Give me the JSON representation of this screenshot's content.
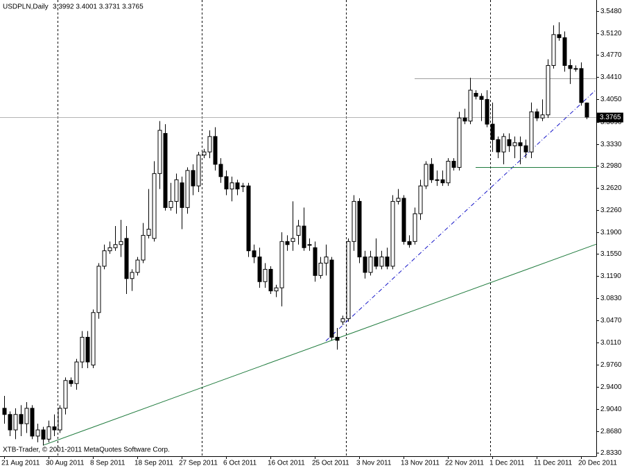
{
  "chart_data": {
    "type": "candlestick",
    "title": "USDPLN,Daily",
    "ohlc_header": "3.3992 3.4001 3.3731 3.3765",
    "watermark": "XTB-Trader, © 2001-2011 MetaQuotes Software Corp.",
    "categories": [
      "21 Aug 2011",
      null,
      null,
      null,
      null,
      null,
      null,
      null,
      "30 Aug 2011",
      null,
      null,
      null,
      null,
      null,
      null,
      null,
      "8 Sep 2011",
      null,
      null,
      null,
      null,
      null,
      null,
      null,
      "18 Sep 2011",
      null,
      null,
      null,
      null,
      null,
      null,
      null,
      "27 Sep 2011",
      null,
      null,
      null,
      null,
      null,
      null,
      null,
      "6 Oct 2011",
      null,
      null,
      null,
      null,
      null,
      null,
      null,
      "16 Oct 2011",
      null,
      null,
      null,
      null,
      null,
      null,
      null,
      "25 Oct 2011",
      null,
      null,
      null,
      null,
      null,
      null,
      null,
      "3 Nov 2011",
      null,
      null,
      null,
      null,
      null,
      null,
      null,
      "13 Nov 2011",
      null,
      null,
      null,
      null,
      null,
      null,
      null,
      "22 Nov 2011",
      null,
      null,
      null,
      null,
      null,
      null,
      null,
      "1 Dec 2011",
      null,
      null,
      null,
      null,
      null,
      null,
      null,
      "11 Dec 2011",
      null,
      null,
      null,
      null,
      null,
      null,
      null,
      "20 Dec 2011",
      null
    ],
    "open": [
      2.905,
      2.895,
      2.87,
      2.895,
      2.88,
      2.905,
      2.86,
      2.87,
      2.855,
      2.875,
      2.87,
      2.905,
      2.95,
      2.945,
      2.98,
      3.02,
      2.975,
      3.06,
      3.135,
      3.16,
      3.165,
      3.17,
      3.18,
      3.115,
      3.125,
      3.145,
      3.185,
      3.18,
      3.285,
      3.35,
      3.23,
      3.24,
      3.27,
      3.23,
      3.29,
      3.265,
      3.315,
      3.32,
      3.345,
      3.3,
      3.28,
      3.26,
      3.27,
      3.265,
      3.265,
      3.16,
      3.15,
      3.11,
      3.13,
      3.095,
      3.1,
      3.175,
      3.175,
      3.185,
      3.2,
      3.17,
      3.165,
      3.12,
      3.14,
      3.145,
      3.02,
      3.045,
      3.05,
      3.175,
      3.24,
      3.15,
      3.125,
      3.15,
      3.135,
      3.15,
      3.135,
      3.24,
      3.245,
      3.175,
      3.175,
      3.22,
      3.265,
      3.3,
      3.275,
      3.275,
      3.27,
      3.305,
      3.295,
      3.375,
      3.37,
      3.415,
      3.41,
      3.405,
      3.365,
      3.34,
      3.32,
      3.34,
      3.33,
      3.335,
      3.33,
      3.32,
      3.385,
      3.375,
      3.38,
      3.46,
      3.51,
      3.505,
      3.46,
      3.455,
      3.455,
      3.3992
    ],
    "high": [
      2.925,
      2.9,
      2.905,
      2.91,
      2.915,
      2.91,
      2.88,
      2.875,
      2.885,
      2.895,
      2.91,
      2.955,
      2.955,
      2.985,
      3.03,
      3.03,
      3.065,
      3.14,
      3.17,
      3.175,
      3.2,
      3.21,
      3.2,
      3.13,
      3.15,
      3.205,
      3.26,
      3.305,
      3.37,
      3.365,
      3.27,
      3.285,
      3.28,
      3.295,
      3.3,
      3.32,
      3.325,
      3.355,
      3.36,
      3.31,
      3.29,
      3.28,
      3.275,
      3.27,
      3.27,
      3.17,
      3.165,
      3.14,
      3.135,
      3.105,
      3.19,
      3.185,
      3.24,
      3.21,
      3.23,
      3.18,
      3.175,
      3.15,
      3.17,
      3.15,
      3.035,
      3.055,
      3.18,
      3.25,
      3.245,
      3.16,
      3.16,
      3.18,
      3.16,
      3.165,
      3.25,
      3.26,
      3.25,
      3.185,
      3.23,
      3.275,
      3.305,
      3.31,
      3.29,
      3.29,
      3.31,
      3.31,
      3.385,
      3.39,
      3.44,
      3.42,
      3.415,
      3.42,
      3.4,
      3.345,
      3.35,
      3.35,
      3.345,
      3.345,
      3.34,
      3.4,
      3.39,
      3.405,
      3.47,
      3.525,
      3.53,
      3.515,
      3.47,
      3.46,
      3.465,
      3.4001
    ],
    "low": [
      2.88,
      2.86,
      2.855,
      2.86,
      2.865,
      2.855,
      2.85,
      2.845,
      2.85,
      2.86,
      2.865,
      2.895,
      2.94,
      2.935,
      2.97,
      2.97,
      2.97,
      3.05,
      3.13,
      3.155,
      3.16,
      3.15,
      3.09,
      3.095,
      3.12,
      3.14,
      3.18,
      3.175,
      3.26,
      3.225,
      3.225,
      3.22,
      3.195,
      3.22,
      3.25,
      3.255,
      3.31,
      3.31,
      3.29,
      3.27,
      3.25,
      3.24,
      3.25,
      3.255,
      3.15,
      3.14,
      3.1,
      3.1,
      3.09,
      3.085,
      3.07,
      3.16,
      3.16,
      3.17,
      3.16,
      3.16,
      3.11,
      3.115,
      3.12,
      3.015,
      3.0,
      3.04,
      3.045,
      3.16,
      3.14,
      3.115,
      3.12,
      3.13,
      3.13,
      3.13,
      3.13,
      3.235,
      3.17,
      3.165,
      3.17,
      3.21,
      3.26,
      3.27,
      3.265,
      3.265,
      3.265,
      3.29,
      3.29,
      3.365,
      3.365,
      3.405,
      3.37,
      3.36,
      3.32,
      3.31,
      3.3,
      3.32,
      3.31,
      3.3,
      3.31,
      3.31,
      3.37,
      3.37,
      3.375,
      3.455,
      3.5,
      3.45,
      3.43,
      3.45,
      3.395,
      3.3731
    ],
    "close": [
      2.895,
      2.87,
      2.895,
      2.88,
      2.905,
      2.86,
      2.87,
      2.855,
      2.875,
      2.87,
      2.905,
      2.95,
      2.945,
      2.98,
      3.02,
      2.98,
      3.06,
      3.135,
      3.16,
      3.165,
      3.17,
      3.175,
      3.115,
      3.125,
      3.145,
      3.185,
      3.195,
      3.285,
      3.355,
      3.23,
      3.24,
      3.275,
      3.23,
      3.29,
      3.265,
      3.315,
      3.32,
      3.345,
      3.3,
      3.28,
      3.26,
      3.27,
      3.26,
      3.265,
      3.16,
      3.15,
      3.11,
      3.13,
      3.095,
      3.1,
      3.175,
      3.17,
      3.18,
      3.2,
      3.165,
      3.17,
      3.12,
      3.14,
      3.15,
      3.02,
      3.015,
      3.05,
      3.175,
      3.24,
      3.15,
      3.125,
      3.15,
      3.135,
      3.15,
      3.135,
      3.24,
      3.245,
      3.175,
      3.17,
      3.22,
      3.265,
      3.3,
      3.275,
      3.275,
      3.27,
      3.305,
      3.295,
      3.375,
      3.37,
      3.42,
      3.41,
      3.405,
      3.365,
      3.34,
      3.32,
      3.345,
      3.33,
      3.335,
      3.33,
      3.32,
      3.385,
      3.375,
      3.38,
      3.46,
      3.51,
      3.505,
      3.46,
      3.455,
      3.455,
      3.4,
      3.3765
    ],
    "ylim": [
      2.8274,
      3.566
    ],
    "yticks": [
      {
        "value": 3.548,
        "label": "3.5480"
      },
      {
        "value": 3.512,
        "label": "3.5120"
      },
      {
        "value": 3.477,
        "label": "3.4770"
      },
      {
        "value": 3.441,
        "label": "3.4410"
      },
      {
        "value": 3.405,
        "label": "3.4050"
      },
      {
        "value": 3.369,
        "label": "3.3690"
      },
      {
        "value": 3.333,
        "label": "3.3330"
      },
      {
        "value": 3.298,
        "label": "3.2980"
      },
      {
        "value": 3.262,
        "label": "3.2620"
      },
      {
        "value": 3.226,
        "label": "3.2260"
      },
      {
        "value": 3.19,
        "label": "3.1900"
      },
      {
        "value": 3.155,
        "label": "3.1550"
      },
      {
        "value": 3.119,
        "label": "3.1190"
      },
      {
        "value": 3.083,
        "label": "3.0830"
      },
      {
        "value": 3.047,
        "label": "3.0470"
      },
      {
        "value": 3.011,
        "label": "3.0110"
      },
      {
        "value": 2.976,
        "label": "2.9760"
      },
      {
        "value": 2.94,
        "label": "2.9400"
      },
      {
        "value": 2.904,
        "label": "2.9040"
      },
      {
        "value": 2.868,
        "label": "2.8680"
      },
      {
        "value": 2.833,
        "label": "2.8330"
      }
    ],
    "bull_color": "#ffffff",
    "bear_color": "#000000",
    "lines": [
      {
        "kind": "trend",
        "color": "#1e7a3c",
        "start_index": 7,
        "start_price": 2.845,
        "end_index": 90,
        "end_price": 3.116
      },
      {
        "kind": "trend",
        "color": "#1414c8",
        "start_index": 58,
        "start_price": 3.014,
        "end_index": 104,
        "end_price": 3.398
      },
      {
        "kind": "horizontal",
        "color": "#a0a0a0",
        "start_index": 74,
        "price": 3.439
      },
      {
        "kind": "horizontal",
        "color": "#1e7a3c",
        "start_index": 85,
        "price": 3.2955
      }
    ]
  }
}
